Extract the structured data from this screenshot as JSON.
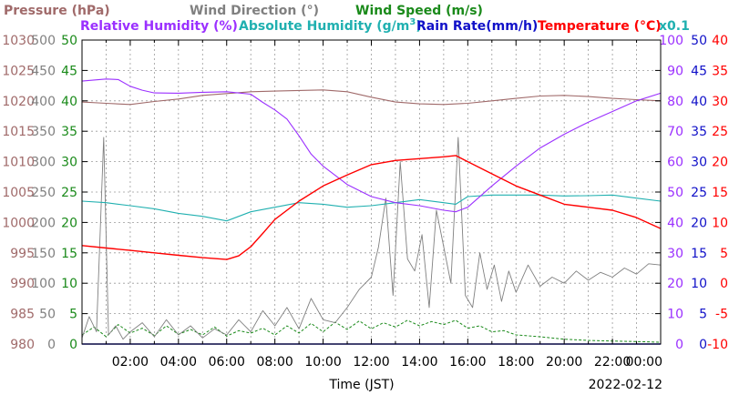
{
  "chart_data": {
    "type": "line",
    "legend_top": [
      {
        "text": "Pressure (hPa)",
        "color": "#a06a6a"
      },
      {
        "text": "Wind Direction (°)",
        "color": "#808080"
      },
      {
        "text": "Wind Speed (m/s)",
        "color": "#1a8a1a"
      }
    ],
    "legend_bottom": [
      {
        "text": "Relative Humidity (%)",
        "color": "#9b30ff"
      },
      {
        "text": "Absolute Humidity (g/m",
        "color": "#20b0b0",
        "sup": "3",
        "tail": ")"
      },
      {
        "text": "Rain Rate(mm/h)",
        "color": "#1010c8"
      },
      {
        "text": "Temperature (°C)",
        "color": "#ff0000"
      }
    ],
    "scale_note": {
      "text": "x0.1",
      "color": "#20b0b0"
    },
    "xlabel": "Time (JST)",
    "date_label": "2022-02-12",
    "x_ticks": [
      "02:00",
      "04:00",
      "06:00",
      "08:00",
      "10:00",
      "12:00",
      "14:00",
      "16:00",
      "18:00",
      "20:00",
      "22:00",
      "00:00"
    ],
    "x_tick_hours": [
      2,
      4,
      6,
      8,
      10,
      12,
      14,
      16,
      18,
      20,
      22,
      24
    ],
    "xlim": [
      0,
      24
    ],
    "left_axes": [
      {
        "name": "pressure",
        "color": "#a06a6a",
        "ticks": [
          "980",
          "985",
          "990",
          "995",
          "1000",
          "1005",
          "1010",
          "1015",
          "1020",
          "1025",
          "1030"
        ]
      },
      {
        "name": "wind_direction",
        "color": "#808080",
        "ticks": [
          "0",
          "50",
          "100",
          "150",
          "200",
          "250",
          "300",
          "350",
          "400",
          "450",
          "500"
        ]
      },
      {
        "name": "wind_speed",
        "color": "#1a8a1a",
        "ticks": [
          "0",
          "5",
          "10",
          "15",
          "20",
          "25",
          "30",
          "35",
          "40",
          "45",
          "50"
        ]
      }
    ],
    "right_axes": [
      {
        "name": "humidity",
        "color": "#9b30ff",
        "ticks": [
          "0",
          "10",
          "20",
          "30",
          "40",
          "50",
          "60",
          "70",
          "80",
          "90",
          "100"
        ]
      },
      {
        "name": "rain",
        "color": "#1010c8",
        "ticks": [
          "0",
          "5",
          "10",
          "15",
          "20",
          "25",
          "30",
          "35",
          "40",
          "45",
          "50"
        ]
      },
      {
        "name": "temperature",
        "color": "#ff0000",
        "ticks": [
          "-10",
          "-5",
          "0",
          "5",
          "10",
          "15",
          "20",
          "25",
          "30",
          "35",
          "40"
        ]
      }
    ],
    "series": [
      {
        "name": "Pressure (hPa)",
        "color": "#a06a6a",
        "ylim": [
          980,
          1030
        ],
        "x": [
          0,
          1,
          2,
          3,
          4,
          5,
          6,
          7,
          8,
          9,
          10,
          11,
          12,
          13,
          14,
          15,
          16,
          17,
          18,
          19,
          20,
          21,
          22,
          23,
          24
        ],
        "y": [
          1019.8,
          1019.6,
          1019.4,
          1019.9,
          1020.3,
          1020.9,
          1021.2,
          1021.5,
          1021.6,
          1021.7,
          1021.8,
          1021.5,
          1020.6,
          1019.8,
          1019.5,
          1019.4,
          1019.6,
          1020.0,
          1020.4,
          1020.8,
          1020.9,
          1020.7,
          1020.4,
          1020.2,
          1020.0
        ]
      },
      {
        "name": "Temperature (°C)",
        "color": "#ff0000",
        "ylim": [
          -10,
          40
        ],
        "x": [
          0,
          1,
          2,
          3,
          4,
          5,
          6,
          6.5,
          7,
          7.5,
          8,
          9,
          10,
          11,
          12,
          13,
          14,
          15,
          15.5,
          16,
          17,
          18,
          19,
          20,
          21,
          22,
          23,
          24
        ],
        "y": [
          6.2,
          5.8,
          5.4,
          5.0,
          4.6,
          4.2,
          3.9,
          4.5,
          6.0,
          8.2,
          10.5,
          13.5,
          16.0,
          17.8,
          19.5,
          20.2,
          20.5,
          20.8,
          21.0,
          20.0,
          18.0,
          16.0,
          14.5,
          13.0,
          12.5,
          12.0,
          10.8,
          9.0
        ]
      },
      {
        "name": "Relative Humidity (%)",
        "color": "#9b30ff",
        "ylim": [
          0,
          100
        ],
        "x": [
          0,
          1,
          1.5,
          2,
          2.5,
          3,
          4,
          5,
          6,
          7,
          7.5,
          8,
          8.5,
          9,
          9.5,
          10,
          11,
          12,
          13,
          14,
          15,
          15.5,
          16,
          17,
          18,
          19,
          20,
          21,
          22,
          23,
          24
        ],
        "y": [
          86.5,
          87.2,
          87.0,
          84.8,
          83.5,
          82.6,
          82.5,
          82.8,
          83.0,
          82.2,
          79.5,
          77.0,
          74.0,
          68.5,
          62.5,
          58.5,
          52.5,
          48.5,
          46.5,
          45.5,
          44.0,
          43.5,
          45.0,
          52.0,
          58.5,
          64.5,
          69.0,
          73.0,
          76.5,
          80.0,
          82.5
        ]
      },
      {
        "name": "Absolute Humidity (g/m3)",
        "color": "#20b0b0",
        "ylim": [
          0,
          100
        ],
        "scale": "x0.1",
        "x": [
          0,
          1,
          2,
          3,
          4,
          5,
          6,
          7,
          8,
          9,
          10,
          11,
          12,
          13,
          14,
          15,
          15.5,
          16,
          17,
          18,
          19,
          20,
          21,
          22,
          23,
          24
        ],
        "y": [
          47.0,
          46.5,
          45.5,
          44.5,
          43.0,
          42.0,
          40.5,
          43.5,
          45.0,
          46.5,
          46.0,
          45.0,
          45.5,
          46.5,
          47.5,
          46.5,
          46.0,
          48.5,
          49.0,
          49.0,
          49.0,
          48.7,
          48.8,
          49.0,
          48.0,
          47.0
        ]
      },
      {
        "name": "Wind Direction (°)",
        "color": "#808080",
        "ylim": [
          0,
          500
        ],
        "x": [
          0,
          0.3,
          0.6,
          0.9,
          1.1,
          1.4,
          1.7,
          2,
          2.5,
          3,
          3.5,
          4,
          4.5,
          5,
          5.5,
          6,
          6.5,
          7,
          7.5,
          8,
          8.5,
          9,
          9.5,
          10,
          10.5,
          11,
          11.5,
          12,
          12.3,
          12.6,
          12.9,
          13.2,
          13.5,
          13.8,
          14.1,
          14.4,
          14.7,
          15.0,
          15.3,
          15.6,
          15.9,
          16.2,
          16.5,
          16.8,
          17.1,
          17.4,
          17.7,
          18,
          18.5,
          19,
          19.5,
          20,
          20.5,
          21,
          21.5,
          22,
          22.5,
          23,
          23.5,
          24
        ],
        "y": [
          10,
          45,
          20,
          340,
          15,
          30,
          8,
          20,
          35,
          12,
          40,
          15,
          30,
          10,
          25,
          15,
          40,
          20,
          55,
          30,
          60,
          25,
          75,
          40,
          35,
          60,
          90,
          110,
          160,
          240,
          80,
          300,
          140,
          120,
          180,
          60,
          220,
          160,
          100,
          340,
          80,
          60,
          150,
          90,
          130,
          70,
          120,
          85,
          130,
          95,
          110,
          100,
          120,
          105,
          118,
          110,
          125,
          115,
          132,
          130
        ]
      },
      {
        "name": "Wind Speed (m/s)",
        "color": "#1a8a1a",
        "ylim": [
          0,
          50
        ],
        "x": [
          0,
          0.5,
          1,
          1.5,
          2,
          2.5,
          3,
          3.5,
          4,
          4.5,
          5,
          5.5,
          6,
          6.5,
          7,
          7.5,
          8,
          8.5,
          9,
          9.5,
          10,
          10.5,
          11,
          11.5,
          12,
          12.5,
          13,
          13.5,
          14,
          14.5,
          15,
          15.5,
          16,
          16.5,
          17,
          17.5,
          18,
          19,
          20,
          21,
          22,
          23,
          24
        ],
        "y": [
          1.5,
          2.8,
          1.2,
          3.2,
          1.8,
          2.6,
          1.4,
          3.0,
          1.6,
          2.4,
          1.5,
          2.8,
          1.3,
          2.2,
          1.8,
          2.6,
          1.5,
          3.0,
          1.8,
          3.4,
          2.0,
          3.6,
          2.4,
          3.8,
          2.5,
          3.5,
          2.8,
          3.9,
          3.0,
          3.7,
          3.2,
          3.9,
          2.6,
          3.0,
          2.0,
          2.2,
          1.5,
          1.2,
          0.8,
          0.6,
          0.5,
          0.4,
          0.3
        ]
      },
      {
        "name": "Rain Rate(mm/h)",
        "color": "#1010c8",
        "ylim": [
          0,
          50
        ],
        "x": [
          0,
          24
        ],
        "y": [
          0,
          0
        ]
      }
    ]
  }
}
